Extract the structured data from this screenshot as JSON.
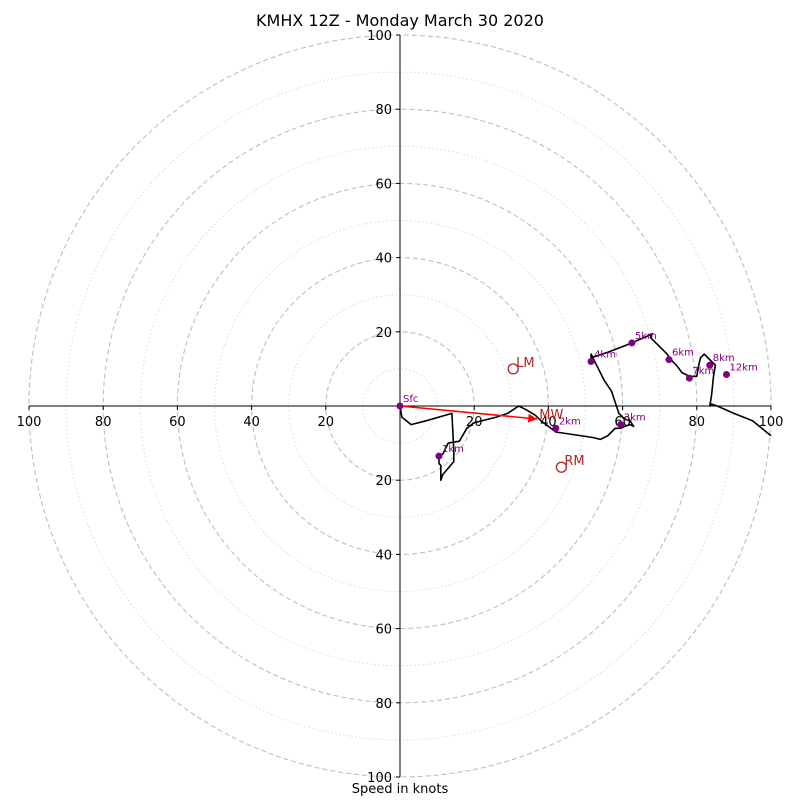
{
  "chart_data": {
    "type": "hodograph",
    "title": "KMHX 12Z - Monday March 30 2020",
    "xlabel": "Speed in knots",
    "ylabel": "",
    "units": "knots",
    "xlim": [
      -100,
      100
    ],
    "ylim": [
      -100,
      100
    ],
    "ring_step": 10,
    "labeled_ticks": [
      20,
      40,
      60,
      80,
      100
    ],
    "tick_labels": [
      "100",
      "80",
      "60",
      "40",
      "20",
      "20",
      "40",
      "60",
      "80",
      "100"
    ],
    "colors": {
      "trace": "#000000",
      "height_marker": "#800080",
      "storm_marker": "#b22222",
      "shear_vector": "#ff0000",
      "major_ring": "#bfbfbf",
      "minor_ring": "#d9d9d9"
    },
    "trace_uv": [
      [
        0,
        0
      ],
      [
        0.5,
        -3
      ],
      [
        3,
        -5
      ],
      [
        7,
        -4
      ],
      [
        14,
        -2
      ],
      [
        14.5,
        -12
      ],
      [
        14.5,
        -15
      ],
      [
        11.5,
        -18.5
      ],
      [
        11,
        -20
      ],
      [
        11,
        -16
      ],
      [
        10.5,
        -15.5
      ],
      [
        10.5,
        -13.5
      ],
      [
        11.5,
        -13
      ],
      [
        13,
        -10
      ],
      [
        16,
        -9.5
      ],
      [
        18,
        -6
      ],
      [
        20,
        -4.5
      ],
      [
        26,
        -3
      ],
      [
        29,
        -2
      ],
      [
        32,
        0
      ],
      [
        34,
        -1
      ],
      [
        36.5,
        -2.5
      ],
      [
        38,
        -4
      ],
      [
        40,
        -5.5
      ],
      [
        42,
        -7
      ],
      [
        52,
        -8.5
      ],
      [
        54,
        -9
      ],
      [
        56,
        -8
      ],
      [
        58,
        -6
      ],
      [
        59.5,
        -6
      ],
      [
        60.5,
        -5.5
      ],
      [
        62,
        -5
      ],
      [
        63,
        -5.5
      ],
      [
        62,
        -4
      ],
      [
        60.5,
        -3.5
      ],
      [
        59,
        -2
      ],
      [
        57,
        4
      ],
      [
        55,
        7
      ],
      [
        53,
        11
      ],
      [
        51.5,
        14
      ],
      [
        51.5,
        13
      ],
      [
        56,
        14.5
      ],
      [
        60,
        16
      ],
      [
        62.5,
        17
      ],
      [
        67,
        19
      ],
      [
        68,
        19.5
      ],
      [
        67.5,
        18.5
      ],
      [
        72,
        14
      ],
      [
        73,
        12.5
      ],
      [
        74.5,
        11
      ],
      [
        76,
        9
      ],
      [
        78,
        8
      ],
      [
        80,
        8
      ],
      [
        80.5,
        11
      ],
      [
        81,
        13
      ],
      [
        82,
        14
      ],
      [
        84,
        12
      ],
      [
        85,
        11
      ],
      [
        84.5,
        8
      ],
      [
        84,
        3
      ],
      [
        83.5,
        0
      ],
      [
        84,
        0.5
      ],
      [
        85.5,
        0
      ],
      [
        90,
        -2
      ],
      [
        95,
        -4
      ],
      [
        100,
        -8
      ]
    ],
    "height_markers": [
      {
        "label": "Sfc",
        "u": 0,
        "v": 0
      },
      {
        "label": "1km",
        "u": 10.5,
        "v": -13.5
      },
      {
        "label": "2km",
        "u": 42,
        "v": -6
      },
      {
        "label": "3km",
        "u": 59.5,
        "v": -5
      },
      {
        "label": "4km",
        "u": 51.5,
        "v": 12
      },
      {
        "label": "5km",
        "u": 62.5,
        "v": 17
      },
      {
        "label": "6km",
        "u": 72.5,
        "v": 12.5
      },
      {
        "label": "7km",
        "u": 78,
        "v": 7.5
      },
      {
        "label": "8km",
        "u": 83.5,
        "v": 11
      },
      {
        "label": "12km",
        "u": 88,
        "v": 8.5
      }
    ],
    "storm_markers": [
      {
        "label": "LM",
        "u": 30.5,
        "v": 10
      },
      {
        "label": "RM",
        "u": 43.5,
        "v": -16.5
      },
      {
        "label": "MW",
        "u": 37,
        "v": -3.5
      }
    ],
    "shear_vector": {
      "from": [
        0,
        0
      ],
      "to": [
        37,
        -3.5
      ]
    }
  }
}
